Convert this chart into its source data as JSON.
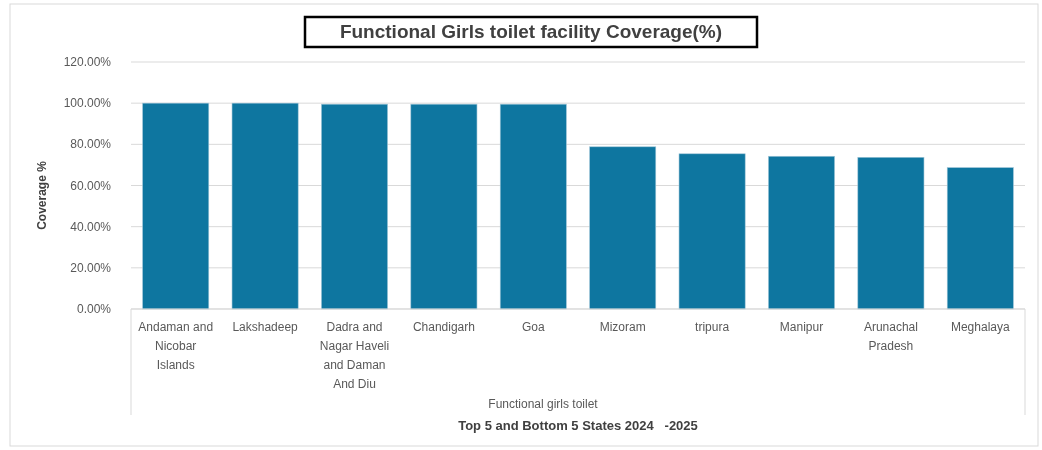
{
  "chart_data": {
    "type": "bar",
    "title": "Functional Girls toilet facility Coverage(%)",
    "xlabel": "Functional girls toilet",
    "ylabel": "Coverage %",
    "annotations": [
      "Top 5 and Bottom 5 States 2024   -2025"
    ],
    "categories": [
      "Andaman and Nicobar Islands",
      "Lakshadeep",
      "Dadra and Nagar Haveli and Daman And Diu",
      "Chandigarh",
      "Goa",
      "Mizoram",
      "tripura",
      "Manipur",
      "Arunachal Pradesh",
      "Meghalaya"
    ],
    "values": [
      100,
      100,
      99.5,
      99.5,
      99.5,
      78.8,
      75.4,
      74.2,
      73.7,
      68.7
    ],
    "color": "#0e76a0",
    "ylim": [
      0,
      120
    ],
    "yticks": [
      {
        "value": 0,
        "label": "0.00%"
      },
      {
        "value": 20,
        "label": "20.00%"
      },
      {
        "value": 40,
        "label": "40.00%"
      },
      {
        "value": 60,
        "label": "60.00%"
      },
      {
        "value": 80,
        "label": "80.00%"
      },
      {
        "value": 100,
        "label": "100.00%"
      },
      {
        "value": 120,
        "label": "120.00%"
      }
    ],
    "grid": "y"
  }
}
